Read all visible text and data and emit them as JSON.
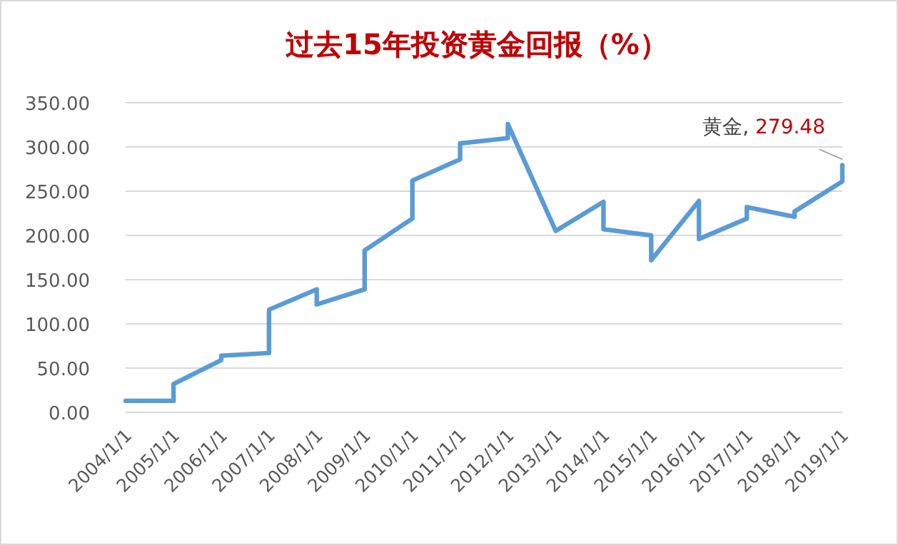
{
  "chart_data": {
    "type": "line",
    "title": "过去15年投资黄金回报（%）",
    "series": [
      {
        "name": "黄金",
        "color": "#5b9bd5",
        "x": [
          "2004-01-01",
          "2005-01-01",
          "2005-01-01",
          "2006-01-01",
          "2006-01-01",
          "2007-01-01",
          "2007-01-01",
          "2008-01-01",
          "2008-01-01",
          "2009-01-01",
          "2009-01-01",
          "2010-01-01",
          "2010-01-01",
          "2011-01-01",
          "2011-01-01",
          "2012-01-01",
          "2012-01-01",
          "2013-01-01",
          "2014-01-01",
          "2014-01-01",
          "2015-01-01",
          "2015-01-01",
          "2016-01-01",
          "2016-01-01",
          "2017-01-01",
          "2017-01-01",
          "2018-01-01",
          "2018-01-01",
          "2019-01-01",
          "2019-01-01"
        ],
        "values": [
          13,
          13,
          32,
          59,
          64,
          67,
          116,
          139,
          122,
          139,
          183,
          219,
          262,
          286,
          304,
          310,
          326,
          205,
          238,
          207,
          200,
          172,
          239,
          196,
          219,
          232,
          221,
          227,
          261,
          279.48
        ],
        "value_labels": [
          null,
          null,
          null,
          null,
          null,
          null,
          null,
          null,
          null,
          null,
          null,
          null,
          null,
          null,
          null,
          null,
          null,
          null,
          null,
          null,
          null,
          null,
          null,
          null,
          null,
          null,
          null,
          null,
          null,
          "279.48"
        ]
      }
    ],
    "xlim": [
      "2004-01-01",
      "2019-01-01"
    ],
    "xticks": [
      {
        "value": "2004-01-01",
        "label": "2004/1/1"
      },
      {
        "value": "2005-01-01",
        "label": "2005/1/1"
      },
      {
        "value": "2006-01-01",
        "label": "2006/1/1"
      },
      {
        "value": "2007-01-01",
        "label": "2007/1/1"
      },
      {
        "value": "2008-01-01",
        "label": "2008/1/1"
      },
      {
        "value": "2009-01-01",
        "label": "2009/1/1"
      },
      {
        "value": "2010-01-01",
        "label": "2010/1/1"
      },
      {
        "value": "2011-01-01",
        "label": "2011/1/1"
      },
      {
        "value": "2012-01-01",
        "label": "2012/1/1"
      },
      {
        "value": "2013-01-01",
        "label": "2013/1/1"
      },
      {
        "value": "2014-01-01",
        "label": "2014/1/1"
      },
      {
        "value": "2015-01-01",
        "label": "2015/1/1"
      },
      {
        "value": "2016-01-01",
        "label": "2016/1/1"
      },
      {
        "value": "2017-01-01",
        "label": "2017/1/1"
      },
      {
        "value": "2018-01-01",
        "label": "2018/1/1"
      },
      {
        "value": "2019-01-01",
        "label": "2019/1/1"
      }
    ],
    "ylim": [
      0,
      350
    ],
    "yticks": [
      {
        "value": 0,
        "label": "0.00"
      },
      {
        "value": 50,
        "label": "50.00"
      },
      {
        "value": 100,
        "label": "100.00"
      },
      {
        "value": 150,
        "label": "150.00"
      },
      {
        "value": 200,
        "label": "200.00"
      },
      {
        "value": 250,
        "label": "250.00"
      },
      {
        "value": 300,
        "label": "300.00"
      },
      {
        "value": 350,
        "label": "350.00"
      }
    ],
    "annotations": [
      ","
    ],
    "grid": "y",
    "legend": false,
    "marker": "none",
    "line_style": "solid"
  }
}
